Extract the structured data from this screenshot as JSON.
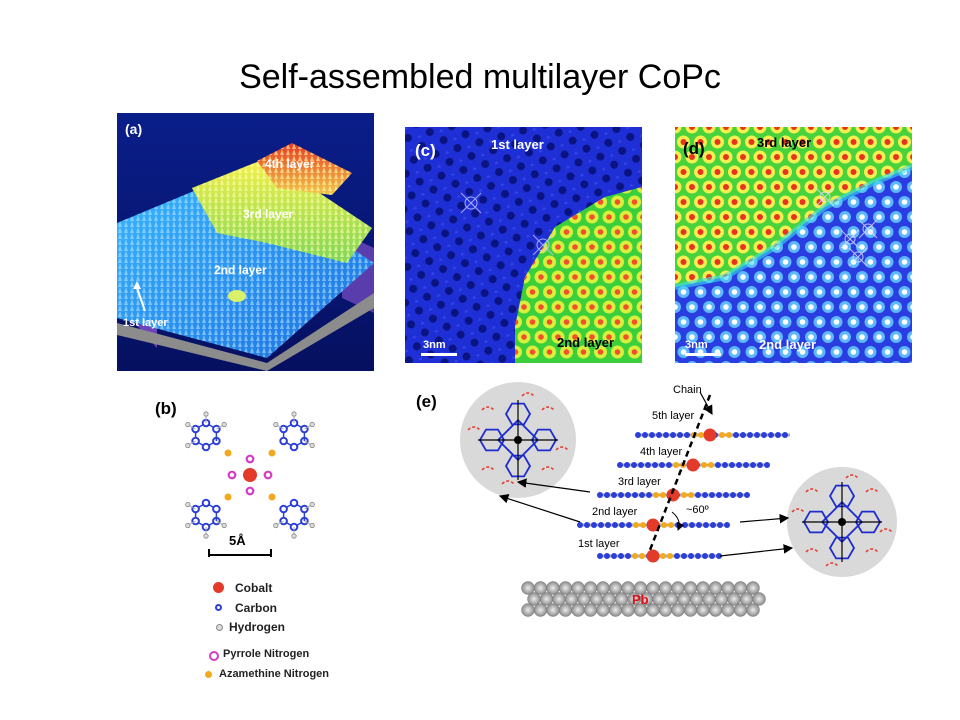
{
  "title": "Self-assembled multilayer CoPc",
  "panel_a": {
    "label": "(a)",
    "layers": [
      "4th layer",
      "3rd layer",
      "2nd layer",
      "1st layer"
    ]
  },
  "panel_b": {
    "label": "(b)",
    "scale": "5Å",
    "legend": [
      {
        "name": "Cobalt",
        "color": "#e43a2a"
      },
      {
        "name": "Carbon",
        "color": "#2b3fd8"
      },
      {
        "name": "Hydrogen",
        "color": "#bdbdbd"
      },
      {
        "name": "Pyrrole Nitrogen",
        "color": "#d63cc2"
      },
      {
        "name": "Azamethine Nitrogen",
        "color": "#f2a91e"
      }
    ]
  },
  "panel_c": {
    "label": "(c)",
    "top_layer": "1st layer",
    "bottom_layer": "2nd layer",
    "scale": "3nm"
  },
  "panel_d": {
    "label": "(d)",
    "top_layer": "3rd layer",
    "bottom_layer": "2nd layer",
    "scale": "3nm"
  },
  "panel_e": {
    "label": "(e)",
    "chain": "Chain",
    "layers": [
      "5th layer",
      "4th layer",
      "3rd layer",
      "2nd layer",
      "1st layer"
    ],
    "angle": "~60º",
    "substrate": "Pb"
  },
  "colors": {
    "cobalt": "#e43a2a",
    "carbon": "#2b3fd8",
    "stm_blue": "#1a2bd0",
    "stm_green": "#3cd23c"
  }
}
